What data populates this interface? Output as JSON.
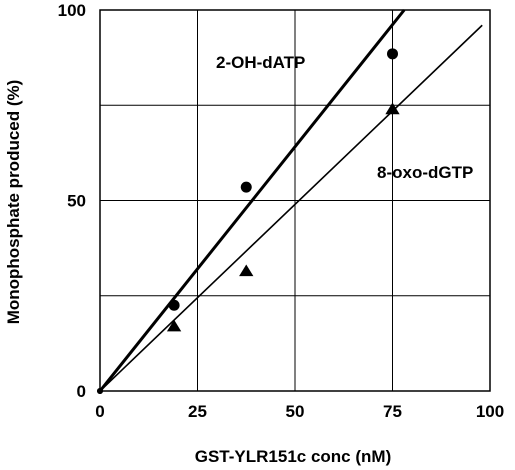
{
  "chart_data": {
    "type": "scatter",
    "xlabel": "GST-YLR151c conc (nM)",
    "ylabel": "Monophosphate produced (%)",
    "xlim": [
      0,
      100
    ],
    "ylim": [
      0,
      100
    ],
    "x_ticks": [
      "0",
      "25",
      "50",
      "75",
      "100"
    ],
    "y_ticks": [
      "0",
      "50",
      "100"
    ],
    "grid": true,
    "series": [
      {
        "name": "2-OH-dATP",
        "marker": "circle",
        "x": [
          0,
          19,
          37.5,
          75
        ],
        "y": [
          0,
          22.5,
          53.5,
          88.5
        ],
        "fit_line_end": [
          78,
          100
        ]
      },
      {
        "name": "8-oxo-dGTP",
        "marker": "triangle",
        "x": [
          0,
          19,
          37.5,
          75
        ],
        "y": [
          0,
          17,
          31.5,
          74
        ],
        "fit_line_end": [
          98,
          96
        ]
      }
    ],
    "colors": {
      "line": "#000000",
      "grid": "#000000",
      "background": "#ffffff"
    }
  }
}
